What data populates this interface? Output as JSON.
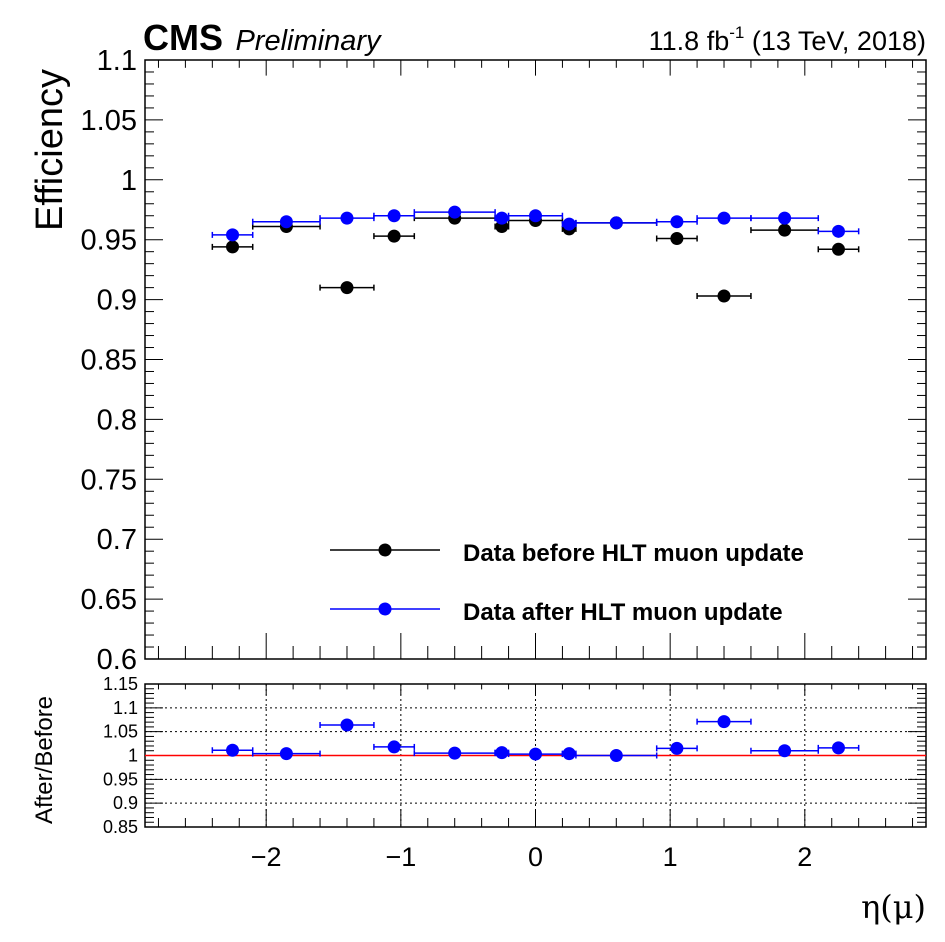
{
  "header": {
    "experiment": "CMS",
    "status": "Preliminary",
    "lumi_value": "11.8 fb",
    "lumi_exp": "-1",
    "lumi_rest": " (13 TeV, 2018)"
  },
  "chart_data": [
    {
      "type": "scatter",
      "panel": "main",
      "ylabel": "Efficiency",
      "xlim": [
        -2.9,
        2.9
      ],
      "ylim": [
        0.6,
        1.1
      ],
      "yticks": [
        "0.6",
        "0.65",
        "0.7",
        "0.75",
        "0.8",
        "0.85",
        "0.9",
        "0.95",
        "1",
        "1.05",
        "1.1"
      ],
      "legend_placement": "bottom-right",
      "series": [
        {
          "name": "Data before HLT muon update",
          "color": "#000000",
          "points": [
            {
              "x": -2.25,
              "xerr": 0.15,
              "y": 0.944
            },
            {
              "x": -1.85,
              "xerr": 0.25,
              "y": 0.961
            },
            {
              "x": -1.4,
              "xerr": 0.2,
              "y": 0.91
            },
            {
              "x": -1.05,
              "xerr": 0.15,
              "y": 0.953
            },
            {
              "x": -0.6,
              "xerr": 0.3,
              "y": 0.968
            },
            {
              "x": -0.25,
              "xerr": 0.05,
              "y": 0.961
            },
            {
              "x": 0.0,
              "xerr": 0.2,
              "y": 0.966
            },
            {
              "x": 0.25,
              "xerr": 0.05,
              "y": 0.959
            },
            {
              "x": 0.6,
              "xerr": 0.3,
              "y": 0.964
            },
            {
              "x": 1.05,
              "xerr": 0.15,
              "y": 0.951
            },
            {
              "x": 1.4,
              "xerr": 0.2,
              "y": 0.903
            },
            {
              "x": 1.85,
              "xerr": 0.25,
              "y": 0.958
            },
            {
              "x": 2.25,
              "xerr": 0.15,
              "y": 0.942
            }
          ]
        },
        {
          "name": "Data after HLT muon update",
          "color": "#0000ff",
          "points": [
            {
              "x": -2.25,
              "xerr": 0.15,
              "y": 0.954
            },
            {
              "x": -1.85,
              "xerr": 0.25,
              "y": 0.965
            },
            {
              "x": -1.4,
              "xerr": 0.2,
              "y": 0.968
            },
            {
              "x": -1.05,
              "xerr": 0.15,
              "y": 0.97
            },
            {
              "x": -0.6,
              "xerr": 0.3,
              "y": 0.973
            },
            {
              "x": -0.25,
              "xerr": 0.05,
              "y": 0.968
            },
            {
              "x": 0.0,
              "xerr": 0.2,
              "y": 0.97
            },
            {
              "x": 0.25,
              "xerr": 0.05,
              "y": 0.963
            },
            {
              "x": 0.6,
              "xerr": 0.3,
              "y": 0.964
            },
            {
              "x": 1.05,
              "xerr": 0.15,
              "y": 0.965
            },
            {
              "x": 1.4,
              "xerr": 0.2,
              "y": 0.968
            },
            {
              "x": 1.85,
              "xerr": 0.25,
              "y": 0.968
            },
            {
              "x": 2.25,
              "xerr": 0.15,
              "y": 0.957
            }
          ]
        }
      ]
    },
    {
      "type": "scatter",
      "panel": "ratio",
      "ylabel": "After/Before",
      "xlabel": "η(μ)",
      "xlim": [
        -2.9,
        2.9
      ],
      "ylim": [
        0.85,
        1.15
      ],
      "yticks": [
        "0.85",
        "0.9",
        "0.95",
        "1",
        "1.05",
        "1.1",
        "1.15"
      ],
      "xticks": [
        "−2",
        "−1",
        "0",
        "1",
        "2"
      ],
      "xtick_values": [
        -2,
        -1,
        0,
        1,
        2
      ],
      "grid": true,
      "reference_line": {
        "y": 1.0,
        "color": "#ff0000"
      },
      "series": [
        {
          "color": "#0000ff",
          "points": [
            {
              "x": -2.25,
              "xerr": 0.15,
              "y": 1.011
            },
            {
              "x": -1.85,
              "xerr": 0.25,
              "y": 1.004
            },
            {
              "x": -1.4,
              "xerr": 0.2,
              "y": 1.064
            },
            {
              "x": -1.05,
              "xerr": 0.15,
              "y": 1.018
            },
            {
              "x": -0.6,
              "xerr": 0.3,
              "y": 1.005
            },
            {
              "x": -0.25,
              "xerr": 0.05,
              "y": 1.006
            },
            {
              "x": 0.0,
              "xerr": 0.2,
              "y": 1.003
            },
            {
              "x": 0.25,
              "xerr": 0.05,
              "y": 1.004
            },
            {
              "x": 0.6,
              "xerr": 0.3,
              "y": 1.0
            },
            {
              "x": 1.05,
              "xerr": 0.15,
              "y": 1.015
            },
            {
              "x": 1.4,
              "xerr": 0.2,
              "y": 1.071
            },
            {
              "x": 1.85,
              "xerr": 0.25,
              "y": 1.01
            },
            {
              "x": 2.25,
              "xerr": 0.15,
              "y": 1.016
            }
          ]
        }
      ]
    }
  ]
}
